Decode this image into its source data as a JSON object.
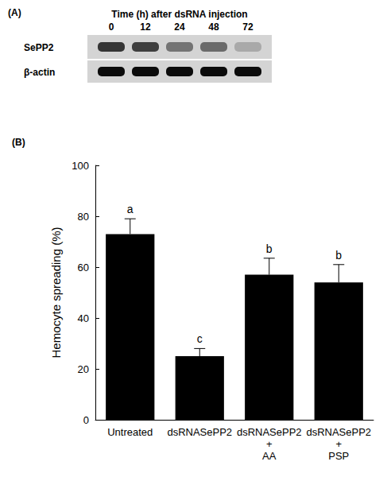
{
  "gel": {
    "panel_label": "(A)",
    "header": "Time (h) after dsRNA injection",
    "lanes": [
      "0",
      "12",
      "24",
      "48",
      "72"
    ],
    "rows": [
      {
        "name": "SePP2",
        "intensity": [
          0.75,
          0.7,
          0.45,
          0.5,
          0.2
        ]
      },
      {
        "name": "β-actin",
        "intensity": [
          0.95,
          0.95,
          0.95,
          0.95,
          0.95
        ]
      }
    ]
  },
  "chart_data": {
    "type": "bar",
    "panel_label": "(B)",
    "categories": [
      "Untreated",
      "dsRNASePP2",
      "dsRNASePP2\n+\nAA",
      "dsRNASePP2\n+\nPSP"
    ],
    "values": [
      73,
      25,
      57,
      54
    ],
    "errors": [
      6,
      3,
      6.5,
      7
    ],
    "letters": [
      "a",
      "c",
      "b",
      "b"
    ],
    "y_label": "Hemocyte spreading (%)",
    "color": "#000000",
    "ylim": [
      0,
      100
    ],
    "yticks": [
      0,
      20,
      40,
      60,
      80,
      100
    ],
    "grid": false
  }
}
